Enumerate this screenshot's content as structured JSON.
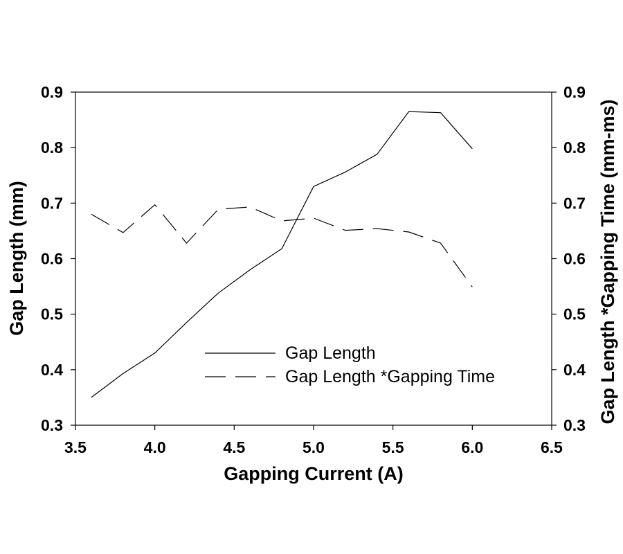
{
  "chart_data": {
    "type": "line",
    "title": "",
    "xlabel": "Gapping Current (A)",
    "ylabel": "Gap Length (mm)",
    "y2label": "Gap Length *Gapping Time (mm-ms)",
    "xlim": [
      3.5,
      6.5
    ],
    "ylim": [
      0.3,
      0.9
    ],
    "y2lim": [
      0.3,
      0.9
    ],
    "x_ticks": [
      "3.5",
      "4.0",
      "4.5",
      "5.0",
      "5.5",
      "6.0",
      "6.5"
    ],
    "y_ticks": [
      "0.3",
      "0.4",
      "0.5",
      "0.6",
      "0.7",
      "0.8",
      "0.9"
    ],
    "y2_ticks": [
      "0.3",
      "0.4",
      "0.5",
      "0.6",
      "0.7",
      "0.8",
      "0.9"
    ],
    "grid": false,
    "legend_position": "lower-right",
    "series": [
      {
        "name": "Gap Length",
        "axis": "left",
        "line_style": "solid",
        "color": "#000000",
        "x": [
          3.6,
          3.8,
          4.0,
          4.2,
          4.4,
          4.6,
          4.8,
          5.0,
          5.2,
          5.4,
          5.6,
          5.8,
          6.0
        ],
        "y": [
          0.35,
          0.393,
          0.43,
          0.485,
          0.538,
          0.58,
          0.618,
          0.73,
          0.756,
          0.788,
          0.865,
          0.863,
          0.798
        ]
      },
      {
        "name": "Gap Length *Gapping Time",
        "axis": "right",
        "line_style": "dashed",
        "color": "#000000",
        "x": [
          3.6,
          3.8,
          4.0,
          4.2,
          4.4,
          4.6,
          4.8,
          5.0,
          5.2,
          5.4,
          5.6,
          5.8,
          6.0
        ],
        "y": [
          0.68,
          0.647,
          0.697,
          0.628,
          0.689,
          0.693,
          0.668,
          0.673,
          0.651,
          0.654,
          0.648,
          0.628,
          0.549
        ]
      }
    ]
  }
}
